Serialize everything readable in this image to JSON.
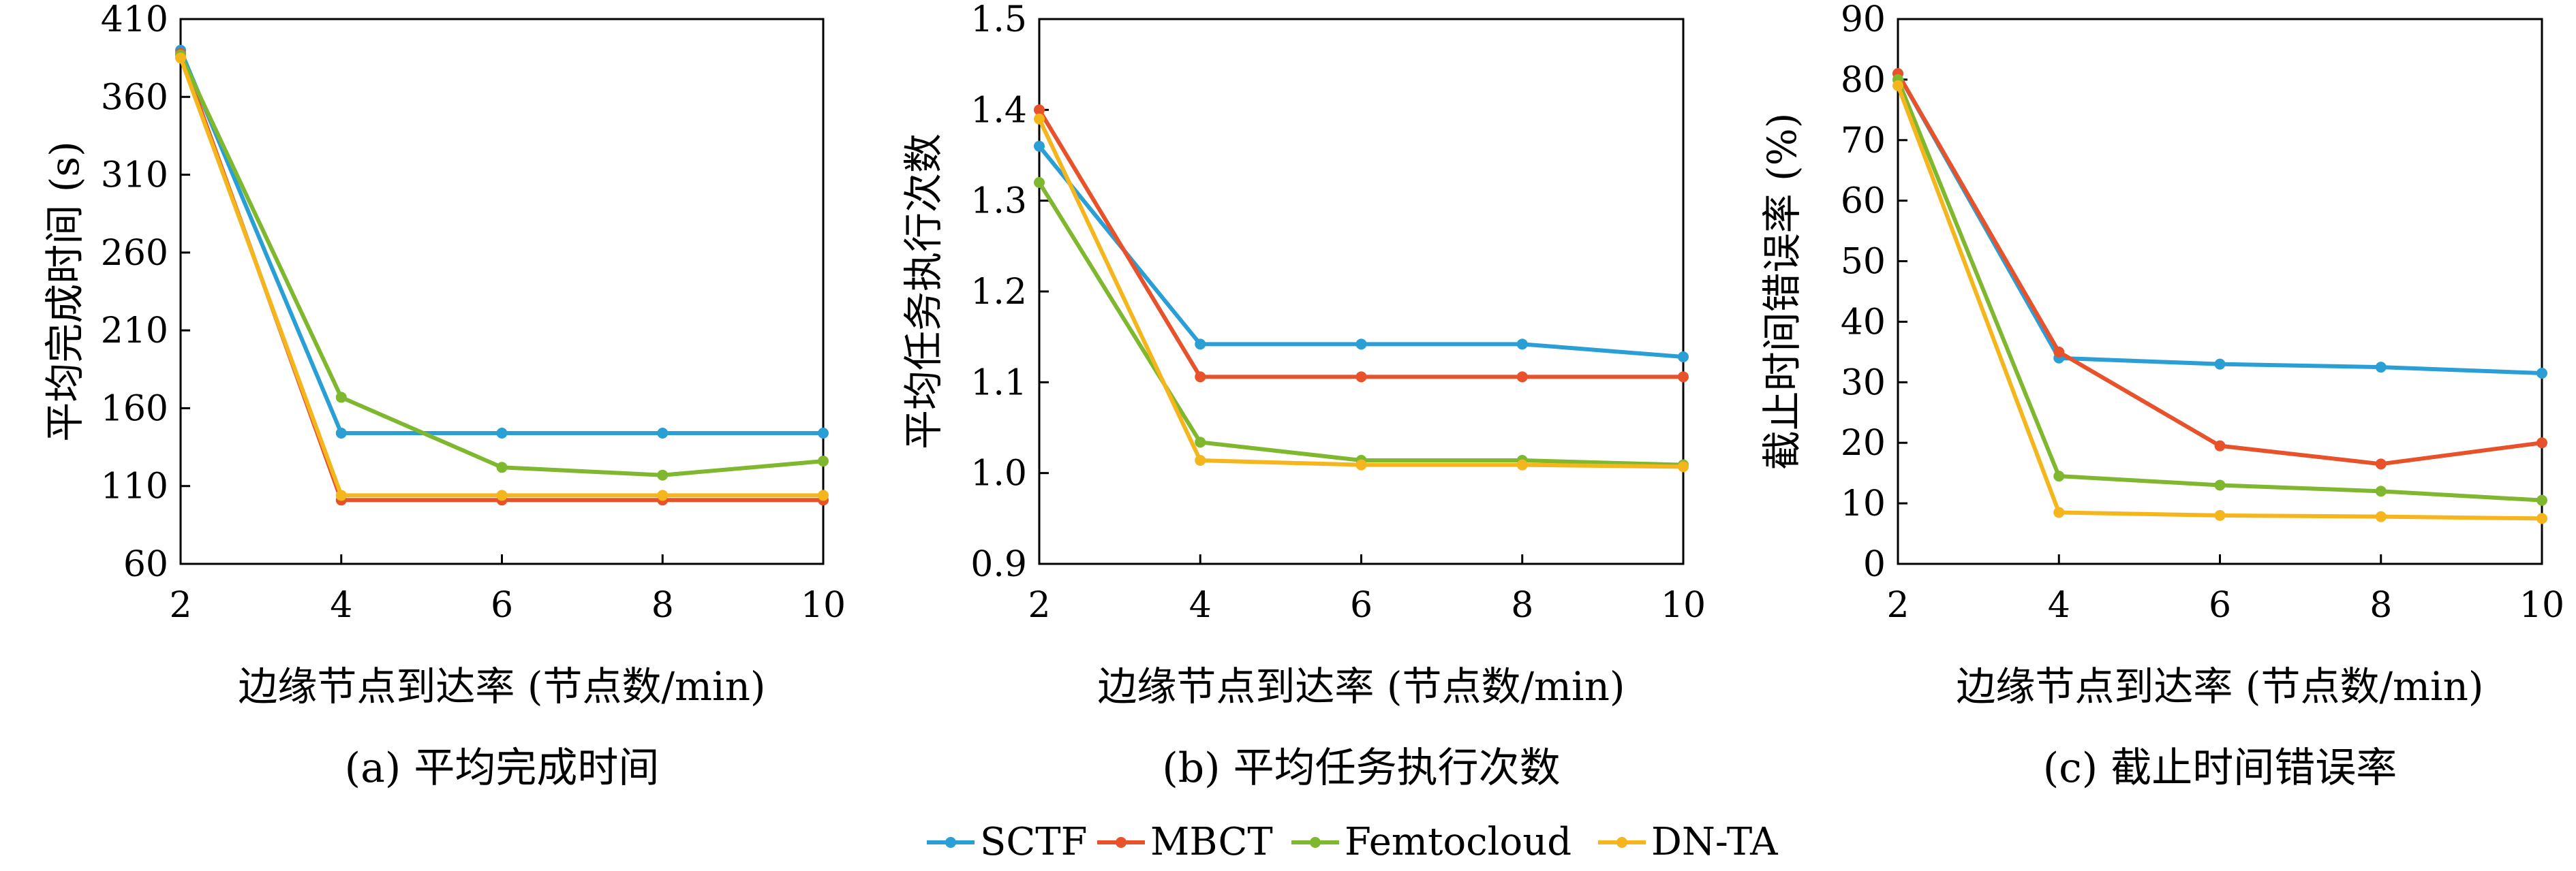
{
  "series_colors": {
    "SCTF": "#2a9fd6",
    "MBCT": "#e8522a",
    "Femtocloud": "#7fb82e",
    "DN-TA": "#f5b61d"
  },
  "legend": [
    "SCTF",
    "MBCT",
    "Femtocloud",
    "DN-TA"
  ],
  "chart_data": [
    {
      "type": "line",
      "caption": "(a) 平均完成时间",
      "xlabel": "边缘节点到达率 (节点数/min)",
      "ylabel": "平均完成时间 (s)",
      "x": [
        2,
        4,
        6,
        8,
        10
      ],
      "xlim": [
        2,
        10
      ],
      "ylim": [
        60,
        410
      ],
      "xticks": [
        "2",
        "4",
        "6",
        "8",
        "10"
      ],
      "yticks": [
        "60",
        "110",
        "160",
        "210",
        "260",
        "310",
        "360",
        "410"
      ],
      "series": [
        {
          "name": "SCTF",
          "values": [
            390,
            144,
            144,
            144,
            144
          ]
        },
        {
          "name": "MBCT",
          "values": [
            388,
            101,
            101,
            101,
            101
          ]
        },
        {
          "name": "Femtocloud",
          "values": [
            387,
            167,
            122,
            117,
            126
          ]
        },
        {
          "name": "DN-TA",
          "values": [
            385,
            104,
            104,
            104,
            104
          ]
        }
      ]
    },
    {
      "type": "line",
      "caption": "(b) 平均任务执行次数",
      "xlabel": "边缘节点到达率 (节点数/min)",
      "ylabel": "平均任务执行次数",
      "x": [
        2,
        4,
        6,
        8,
        10
      ],
      "xlim": [
        2,
        10
      ],
      "ylim": [
        0.9,
        1.5
      ],
      "xticks": [
        "2",
        "4",
        "6",
        "8",
        "10"
      ],
      "yticks": [
        "0.9",
        "1.0",
        "1.1",
        "1.2",
        "1.3",
        "1.4",
        "1.5"
      ],
      "series": [
        {
          "name": "SCTF",
          "values": [
            1.36,
            1.142,
            1.142,
            1.142,
            1.128
          ]
        },
        {
          "name": "MBCT",
          "values": [
            1.4,
            1.106,
            1.106,
            1.106,
            1.106
          ]
        },
        {
          "name": "Femtocloud",
          "values": [
            1.32,
            1.034,
            1.014,
            1.014,
            1.009
          ]
        },
        {
          "name": "DN-TA",
          "values": [
            1.39,
            1.014,
            1.009,
            1.009,
            1.007
          ]
        }
      ]
    },
    {
      "type": "line",
      "caption": "(c) 截止时间错误率",
      "xlabel": "边缘节点到达率 (节点数/min)",
      "ylabel": "截止时间错误率 (%)",
      "x": [
        2,
        4,
        6,
        8,
        10
      ],
      "xlim": [
        2,
        10
      ],
      "ylim": [
        0,
        90
      ],
      "xticks": [
        "2",
        "4",
        "6",
        "8",
        "10"
      ],
      "yticks": [
        "0",
        "10",
        "20",
        "30",
        "40",
        "50",
        "60",
        "70",
        "80",
        "90"
      ],
      "series": [
        {
          "name": "SCTF",
          "values": [
            81,
            34,
            33,
            32.5,
            31.5
          ]
        },
        {
          "name": "MBCT",
          "values": [
            81,
            35,
            19.5,
            16.5,
            20
          ]
        },
        {
          "name": "Femtocloud",
          "values": [
            80,
            14.5,
            13,
            12,
            10.5
          ]
        },
        {
          "name": "DN-TA",
          "values": [
            79,
            8.5,
            8,
            7.8,
            7.5
          ]
        }
      ]
    }
  ]
}
